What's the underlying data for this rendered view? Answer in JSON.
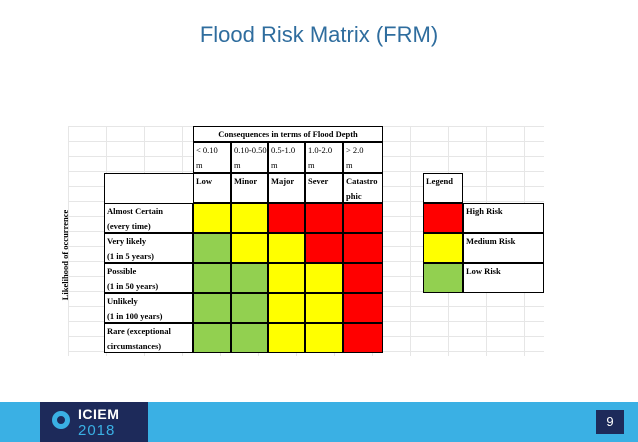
{
  "slide": {
    "title": "Flood Risk Matrix (FRM)",
    "page_number": "9"
  },
  "matrix": {
    "header": "Consequences in terms of Flood Depth",
    "depth_ranges": [
      [
        "< 0.10",
        "m"
      ],
      [
        "0.10-0.50",
        "m"
      ],
      [
        "0.5-1.0",
        "m"
      ],
      [
        "1.0-2.0",
        "m"
      ],
      [
        "> 2.0",
        "m"
      ]
    ],
    "consequences": [
      "Low",
      "Minor",
      "Major",
      "Sever",
      "Catastro",
      "phic"
    ],
    "likelihood_label": "Likelihood of occurrence",
    "likelihoods": [
      [
        "Almost Certain",
        "(every time)"
      ],
      [
        "Very likely",
        "(1 in 5 years)"
      ],
      [
        "Possible",
        "(1 in 50 years)"
      ],
      [
        "Unlikely",
        "(1 in 100 years)"
      ],
      [
        "Rare (exceptional",
        "circumstances)"
      ]
    ],
    "risk_grid": [
      [
        "medium",
        "medium",
        "high",
        "high",
        "high"
      ],
      [
        "low",
        "medium",
        "medium",
        "high",
        "high"
      ],
      [
        "low",
        "low",
        "medium",
        "medium",
        "high"
      ],
      [
        "low",
        "low",
        "medium",
        "medium",
        "high"
      ],
      [
        "low",
        "low",
        "medium",
        "medium",
        "high"
      ]
    ],
    "colors": {
      "high": "#ff0000",
      "medium": "#ffff00",
      "low": "#92d050"
    }
  },
  "legend": {
    "title": "Legend",
    "items": [
      {
        "label": "High Risk",
        "level": "high"
      },
      {
        "label": "Medium Risk",
        "level": "medium"
      },
      {
        "label": "Low Risk",
        "level": "low"
      }
    ]
  },
  "footer": {
    "logo_name": "ICIEM",
    "logo_year": "2018",
    "logo_icon": "ring-logo-icon"
  }
}
